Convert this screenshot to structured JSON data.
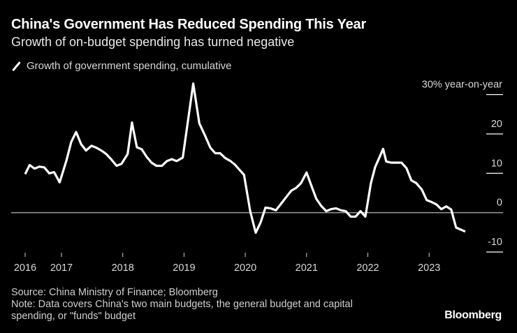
{
  "header": {
    "title": "China's Government Has Reduced Spending This Year",
    "subtitle": "Growth of on-budget spending has turned negative"
  },
  "legend": {
    "icon": "line-swatch-icon",
    "label": "Growth of government spending, cumulative"
  },
  "footer": {
    "source": "Source: China Ministry of Finance; Bloomberg",
    "note_line1": "Note: Data covers China's two main budgets, the general budget and capital",
    "note_line2": "spending, or \"funds\" budget",
    "brand": "Bloomberg"
  },
  "colors": {
    "background": "#000000",
    "line": "#ffffff",
    "zero_line": "#9a9a9a",
    "text": "#d8d8d8"
  },
  "chart_data": {
    "type": "line",
    "title": "China's Government Has Reduced Spending This Year",
    "subtitle": "Growth of on-budget spending has turned negative",
    "xlabel": "",
    "ylabel": "% year-on-year",
    "y_unit_label": "30% year-on-year",
    "ylim": [
      -10,
      30
    ],
    "yticks": [
      30,
      20,
      10,
      0,
      -10
    ],
    "ytick_labels": [
      "30% year-on-year",
      "20",
      "10",
      "0",
      "-10"
    ],
    "xlim": [
      2016.4,
      2023.85
    ],
    "xticks": [
      2016.4,
      2017,
      2018,
      2019,
      2020,
      2021,
      2022,
      2023
    ],
    "xtick_labels": [
      "2016",
      "2017",
      "2018",
      "2019",
      "2020",
      "2021",
      "2022",
      "2023"
    ],
    "legend_position": "top-left",
    "grid": "horizontal ticks on right",
    "series": [
      {
        "name": "Growth of government spending, cumulative",
        "x": [
          2016.4,
          2016.48,
          2016.56,
          2016.64,
          2016.72,
          2016.8,
          2016.88,
          2016.97,
          2017.08,
          2017.16,
          2017.24,
          2017.32,
          2017.4,
          2017.49,
          2017.57,
          2017.65,
          2017.73,
          2017.81,
          2017.9,
          2017.98,
          2018.08,
          2018.15,
          2018.23,
          2018.31,
          2018.39,
          2018.47,
          2018.55,
          2018.64,
          2018.72,
          2018.8,
          2018.88,
          2018.98,
          2019.15,
          2019.25,
          2019.34,
          2019.43,
          2019.51,
          2019.59,
          2019.67,
          2019.76,
          2019.83,
          2019.91,
          2019.98,
          2020.08,
          2020.17,
          2020.25,
          2020.33,
          2020.41,
          2020.5,
          2020.58,
          2020.66,
          2020.75,
          2020.83,
          2020.91,
          2021.0,
          2021.08,
          2021.16,
          2021.24,
          2021.32,
          2021.4,
          2021.48,
          2021.56,
          2021.64,
          2021.72,
          2021.8,
          2021.88,
          2021.96,
          2022.05,
          2022.12,
          2022.25,
          2022.3,
          2022.38,
          2022.46,
          2022.55,
          2022.63,
          2022.71,
          2022.79,
          2022.88,
          2022.96,
          2023.04,
          2023.12,
          2023.2,
          2023.28,
          2023.36,
          2023.44,
          2023.59
        ],
        "values": [
          9.8,
          12.1,
          11.2,
          11.7,
          11.5,
          10.0,
          10.3,
          7.7,
          13.2,
          18.0,
          20.5,
          17.4,
          15.8,
          17.0,
          16.5,
          15.8,
          14.9,
          13.6,
          11.9,
          12.4,
          14.9,
          22.9,
          16.6,
          16.1,
          14.2,
          12.7,
          11.9,
          11.9,
          13.1,
          13.6,
          13.1,
          14.0,
          32.8,
          22.7,
          19.7,
          16.5,
          15.1,
          15.1,
          13.9,
          13.1,
          12.2,
          10.8,
          9.6,
          0.4,
          -5.1,
          -2.5,
          1.3,
          1.1,
          0.6,
          2.2,
          3.8,
          5.6,
          6.3,
          7.5,
          10.2,
          6.8,
          3.5,
          1.7,
          0.4,
          0.9,
          1.1,
          0.6,
          0.4,
          -1.0,
          -1.0,
          0.4,
          -1.0,
          7.5,
          11.6,
          16.2,
          13.0,
          12.7,
          12.7,
          12.7,
          11.3,
          8.2,
          7.5,
          5.9,
          3.2,
          2.7,
          2.1,
          0.9,
          1.6,
          0.8,
          -3.8,
          -4.8
        ]
      }
    ]
  }
}
